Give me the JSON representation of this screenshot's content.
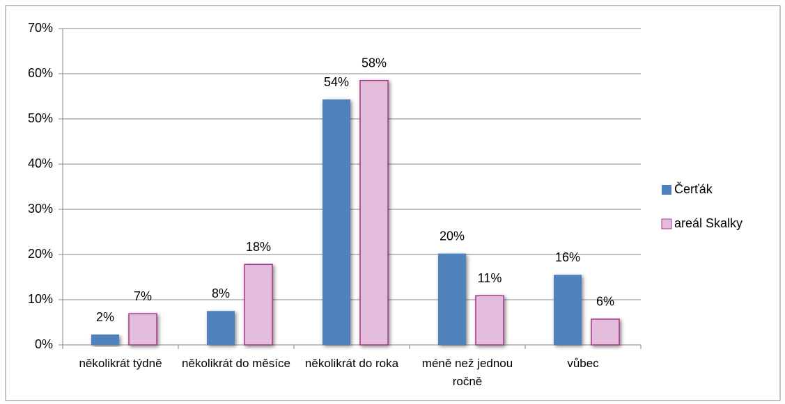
{
  "chart_data": {
    "type": "bar",
    "categories": [
      "několikrát týdně",
      "několikrát do měsíce",
      "několikrát do roka",
      "méně než jednou ročně",
      "vůbec"
    ],
    "series": [
      {
        "name": "Čerťák",
        "color": "#4f81bd",
        "values": [
          2.3,
          7.5,
          54.3,
          20.2,
          15.5
        ],
        "value_labels": [
          "2%",
          "8%",
          "54%",
          "20%",
          "16%"
        ]
      },
      {
        "name": "areál Skalky",
        "color": "#e4bcdc",
        "values": [
          6.9,
          17.8,
          58.5,
          10.9,
          5.7
        ],
        "value_labels": [
          "7%",
          "18%",
          "58%",
          "11%",
          "6%"
        ]
      }
    ],
    "ylim": [
      0,
      70
    ],
    "yticks": [
      {
        "value": 0,
        "label": "0%"
      },
      {
        "value": 10,
        "label": "10%"
      },
      {
        "value": 20,
        "label": "20%"
      },
      {
        "value": 30,
        "label": "30%"
      },
      {
        "value": 40,
        "label": "40%"
      },
      {
        "value": 50,
        "label": "50%"
      },
      {
        "value": 60,
        "label": "60%"
      },
      {
        "value": 70,
        "label": "70%"
      }
    ],
    "grid": true,
    "legend": "right"
  }
}
